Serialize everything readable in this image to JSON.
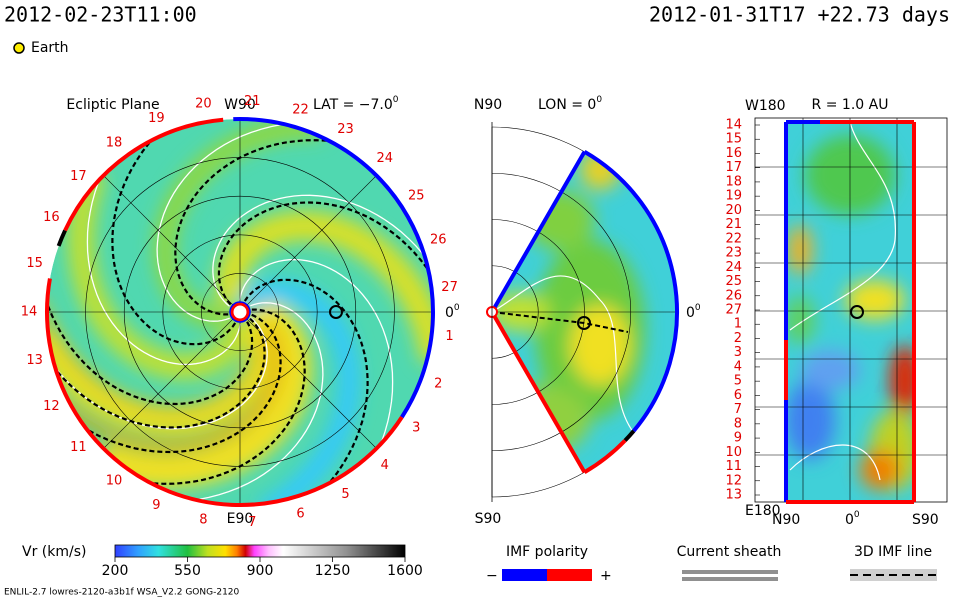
{
  "header": {
    "time": "2012-02-23T11:00",
    "run_time": "2012-01-31T17 +22.73 days",
    "legend": "Earth"
  },
  "ecliptic": {
    "title": "Ecliptic Plane",
    "top": "W90",
    "lat": "LAT = −7.0",
    "lat_sup": "0",
    "bottom": "E90",
    "right": "0",
    "right_sup": "0",
    "labels": [
      "20",
      "21",
      "22",
      "23",
      "24",
      "25",
      "26",
      "27",
      "1",
      "2",
      "3",
      "4",
      "5",
      "6",
      "7",
      "8",
      "9",
      "10",
      "11",
      "12",
      "13",
      "14",
      "15",
      "16",
      "17",
      "18",
      "19"
    ]
  },
  "meridional": {
    "top": "N90",
    "lon": "LON = 0",
    "lon_sup": "0",
    "right": "0",
    "right_sup": "0",
    "bottom": "S90"
  },
  "radial": {
    "top": "W180",
    "title": "R = 1.0 AU",
    "bottom": "E180",
    "x_left": "N90",
    "x_mid": "0",
    "x_mid_sup": "0",
    "x_right": "S90",
    "labels": [
      "14",
      "15",
      "16",
      "17",
      "18",
      "19",
      "20",
      "21",
      "22",
      "23",
      "24",
      "25",
      "26",
      "27",
      "1",
      "2",
      "3",
      "4",
      "5",
      "6",
      "7",
      "8",
      "9",
      "10",
      "11",
      "12",
      "13"
    ]
  },
  "colorbar": {
    "label": "Vr (km/s)",
    "ticks": [
      200,
      550,
      900,
      1250,
      1600
    ]
  },
  "legend": {
    "polarity": "IMF polarity",
    "minus": "−",
    "plus": "+",
    "sheath": "Current sheath",
    "imf_line": "3D IMF line"
  },
  "footer": {
    "run": "ENLIL-2.7 lowres-2120-a3b1f WSA_V2.2 GONG-2120"
  }
}
